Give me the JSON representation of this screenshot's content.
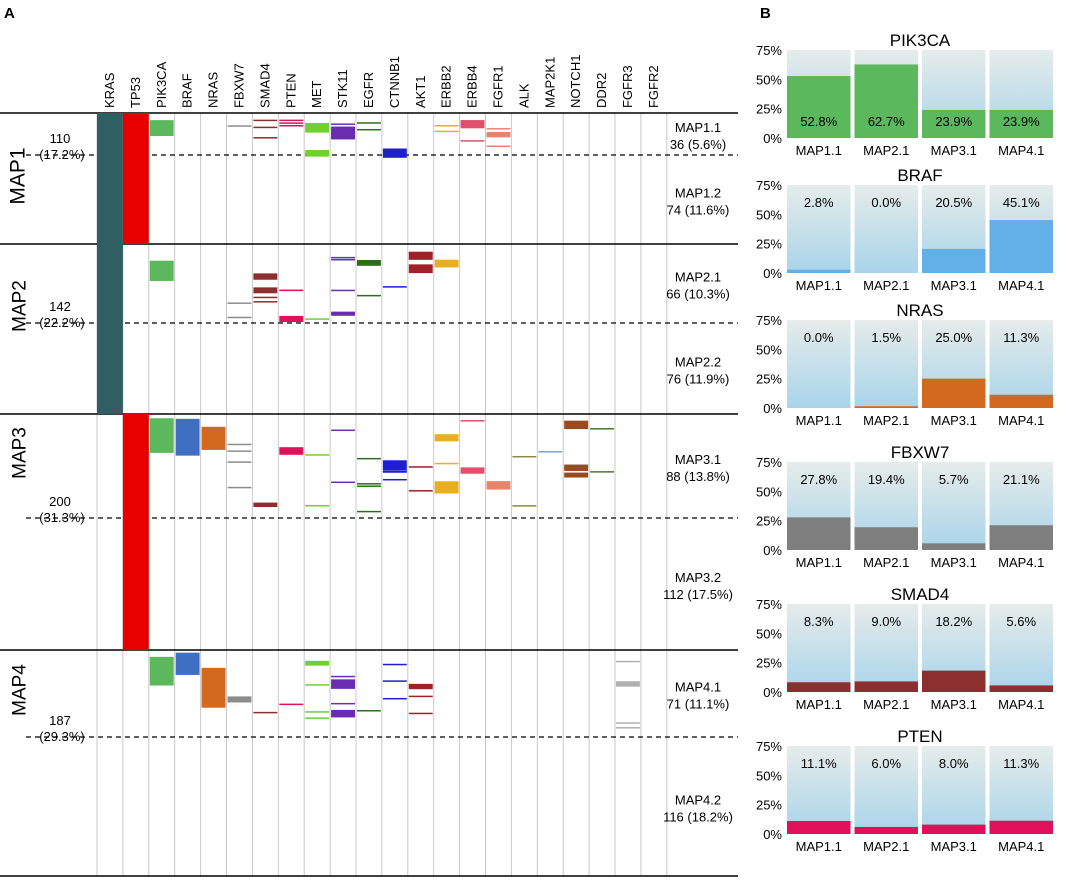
{
  "panel_labels": {
    "a": "A",
    "b": "B"
  },
  "colors": {
    "KRAS": "#2f5f62",
    "TP53": "#e60000",
    "PIK3CA": "#5cb85c",
    "BRAF": "#3f6fc2",
    "NRAS": "#d2691e",
    "FBXW7": "#8c8c8c",
    "SMAD4": "#8b2f2f",
    "PTEN": "#e0105a",
    "MET": "#6fd02f",
    "STK11": "#6a2db0",
    "EGFR": "#2e6b1e",
    "CTNNB1": "#1f1fcf",
    "AKT1": "#a0202a",
    "ERBB2": "#e8b020",
    "ERBB4": "#e0506a",
    "FGFR1": "#e8846a",
    "ALK": "#8a8a40",
    "MAP2K1": "#7aa0e0",
    "NOTCH1": "#9a4a20",
    "DDR2": "#4a7a2a",
    "FGFR3": "#b0b0b0",
    "FGFR2": "#b0b0b0"
  },
  "chart_data": [
    {
      "type": "heatmap",
      "panel": "A",
      "genes": [
        "KRAS",
        "TP53",
        "PIK3CA",
        "BRAF",
        "NRAS",
        "FBXW7",
        "SMAD4",
        "PTEN",
        "MET",
        "STK11",
        "EGFR",
        "CTNNB1",
        "AKT1",
        "ERBB2",
        "ERBB4",
        "FGFR1",
        "ALK",
        "MAP2K1",
        "NOTCH1",
        "DDR2",
        "FGFR3",
        "FGFR2"
      ],
      "groups": [
        {
          "name": "MAP1",
          "count": "110",
          "pct": "(17.2%)",
          "subgroups": [
            {
              "name": "MAP1.1",
              "label": "36 (5.6%)",
              "n": 36
            },
            {
              "name": "MAP1.2",
              "label": "74 (11.6%)",
              "n": 74
            }
          ]
        },
        {
          "name": "MAP2",
          "count": "142",
          "pct": "(22.2%)",
          "subgroups": [
            {
              "name": "MAP2.1",
              "label": "66 (10.3%)",
              "n": 66
            },
            {
              "name": "MAP2.2",
              "label": "76 (11.9%)",
              "n": 76
            }
          ]
        },
        {
          "name": "MAP3",
          "count": "200",
          "pct": "(31.3%)",
          "subgroups": [
            {
              "name": "MAP3.1",
              "label": "88 (13.8%)",
              "n": 88
            },
            {
              "name": "MAP3.2",
              "label": "112 (17.5%)",
              "n": 112
            }
          ]
        },
        {
          "name": "MAP4",
          "count": "187",
          "pct": "(29.3%)",
          "subgroups": [
            {
              "name": "MAP4.1",
              "label": "71 (11.1%)",
              "n": 71
            },
            {
              "name": "MAP4.2",
              "label": "116 (18.2%)",
              "n": 116
            }
          ]
        }
      ],
      "group_mutated_genes": {
        "MAP1": {
          "all": [
            "KRAS",
            "TP53"
          ],
          "sub1": [
            "PIK3CA",
            "FBXW7",
            "SMAD4",
            "PTEN",
            "MET",
            "STK11",
            "EGFR",
            "CTNNB1",
            "ERBB2",
            "ERBB4",
            "FGFR1"
          ]
        },
        "MAP2": {
          "all": [
            "KRAS"
          ],
          "sub1": [
            "PIK3CA",
            "FBXW7",
            "SMAD4",
            "PTEN",
            "MET",
            "STK11",
            "EGFR",
            "CTNNB1",
            "AKT1",
            "ERBB2"
          ]
        },
        "MAP3": {
          "all": [
            "TP53"
          ],
          "sub1": [
            "PIK3CA",
            "BRAF",
            "NRAS",
            "FBXW7",
            "SMAD4",
            "PTEN",
            "MET",
            "STK11",
            "EGFR",
            "CTNNB1",
            "AKT1",
            "ERBB2",
            "ERBB4",
            "FGFR1",
            "ALK",
            "MAP2K1",
            "NOTCH1",
            "DDR2"
          ]
        },
        "MAP4": {
          "all": [],
          "sub1": [
            "PIK3CA",
            "BRAF",
            "NRAS",
            "FBXW7",
            "SMAD4",
            "PTEN",
            "MET",
            "STK11",
            "EGFR",
            "CTNNB1",
            "AKT1",
            "FGFR3"
          ]
        }
      }
    },
    {
      "type": "bar",
      "panel": "B",
      "categories": [
        "MAP1.1",
        "MAP2.1",
        "MAP3.1",
        "MAP4.1"
      ],
      "yticks": [
        "75%",
        "50%",
        "25%",
        "0%"
      ],
      "ylim": [
        0,
        75
      ],
      "series": [
        {
          "name": "PIK3CA",
          "values": [
            52.8,
            62.7,
            23.9,
            23.9
          ],
          "labels": [
            "52.8%",
            "62.7%",
            "23.9%",
            "23.9%"
          ],
          "color": "#5cb85c",
          "label_pos": "bottom"
        },
        {
          "name": "BRAF",
          "values": [
            2.8,
            0.0,
            20.5,
            45.1
          ],
          "labels": [
            "2.8%",
            "0.0%",
            "20.5%",
            "45.1%"
          ],
          "color": "#63b0e8",
          "label_pos": "top"
        },
        {
          "name": "NRAS",
          "values": [
            0.0,
            1.5,
            25.0,
            11.3
          ],
          "labels": [
            "0.0%",
            "1.5%",
            "25.0%",
            "11.3%"
          ],
          "color": "#d2691e",
          "label_pos": "top"
        },
        {
          "name": "FBXW7",
          "values": [
            27.8,
            19.4,
            5.7,
            21.1
          ],
          "labels": [
            "27.8%",
            "19.4%",
            "5.7%",
            "21.1%"
          ],
          "color": "#7f7f7f",
          "label_pos": "top"
        },
        {
          "name": "SMAD4",
          "values": [
            8.3,
            9.0,
            18.2,
            5.6
          ],
          "labels": [
            "8.3%",
            "9.0%",
            "18.2%",
            "5.6%"
          ],
          "color": "#8b2f2f",
          "label_pos": "top"
        },
        {
          "name": "PTEN",
          "values": [
            11.1,
            6.0,
            8.0,
            11.3
          ],
          "labels": [
            "11.1%",
            "6.0%",
            "8.0%",
            "11.3%"
          ],
          "color": "#e0105a",
          "label_pos": "top"
        }
      ]
    }
  ]
}
